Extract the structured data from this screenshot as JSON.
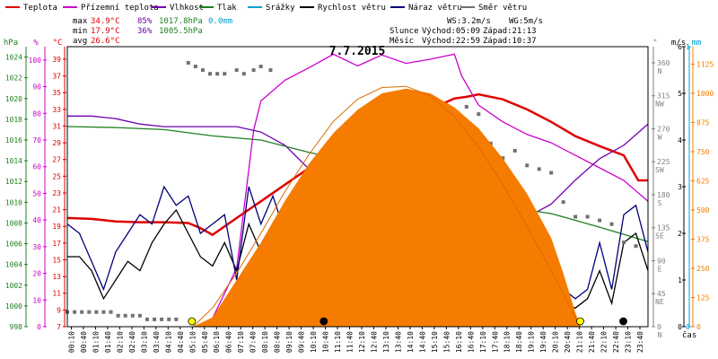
{
  "chart_data": {
    "type": "line",
    "title": "7.7.2015",
    "xlabel": "čas",
    "legend": [
      {
        "label": "Teplota",
        "color": "#e00000"
      },
      {
        "label": "Přízemní teplota",
        "color": "#cc00cc"
      },
      {
        "label": "Vlhkost",
        "color": "#7000b0"
      },
      {
        "label": "Tlak",
        "color": "#208020"
      },
      {
        "label": "Srážky",
        "color": "#00a0d0"
      },
      {
        "label": "Rychlost větru",
        "color": "#000000"
      },
      {
        "label": "Náraz větru",
        "color": "#00007a"
      },
      {
        "label": "Směr větru",
        "color": "#707070"
      }
    ],
    "stats": {
      "max": {
        "label": "max",
        "temp": "34.9°C",
        "hum": "85%",
        "press": "1017.8hPa",
        "rain": "0.0mm"
      },
      "min": {
        "label": "min",
        "temp": "17.9°C",
        "hum": "36%",
        "press": "1005.5hPa"
      },
      "avg": {
        "label": "avg",
        "temp": "26.6°C"
      }
    },
    "wind_info": {
      "ws": "WS:3.2m/s",
      "wg": "WG:5m/s"
    },
    "sun": {
      "label": "Slunce",
      "rise": "Východ:05:09",
      "set": "Západ:21:13"
    },
    "moon": {
      "label": "Měsíc",
      "rise": "Východ:22:59",
      "set": "Západ:10:37"
    },
    "axes": {
      "hpa": {
        "unit": "hPa",
        "range": [
          998,
          1025
        ],
        "ticks": [
          "998",
          "1000",
          "1002",
          "1004",
          "1006",
          "1008",
          "1010",
          "1012",
          "1014",
          "1016",
          "1018",
          "1020",
          "1022",
          "1024"
        ]
      },
      "humidity": {
        "unit": "%",
        "range": [
          0,
          105
        ],
        "ticks": [
          "0",
          "10",
          "20",
          "30",
          "40",
          "50",
          "60",
          "70",
          "80",
          "90",
          "100"
        ]
      },
      "temp": {
        "unit": "°C",
        "range": [
          7,
          40.5
        ],
        "ticks": [
          "7",
          "9",
          "11",
          "13",
          "15",
          "17",
          "19",
          "21",
          "23",
          "25",
          "27",
          "29",
          "31",
          "33",
          "35",
          "37",
          "39"
        ]
      },
      "direction": {
        "unit": "°",
        "range": [
          0,
          382
        ],
        "ticks": [
          "0",
          "45",
          "90",
          "135",
          "180",
          "225",
          "270",
          "315",
          "360"
        ],
        "labels": [
          "N",
          "NE",
          "E",
          "SE",
          "S",
          "SW",
          "W",
          "NW",
          "N"
        ]
      },
      "wind": {
        "unit": "m/s",
        "range": [
          0,
          6
        ],
        "ticks": [
          "0",
          "1",
          "2",
          "3",
          "4",
          "5",
          "6"
        ]
      },
      "rain": {
        "unit": "mm",
        "range": [
          0,
          1
        ],
        "ticks": [
          "0",
          "1"
        ]
      },
      "solar": {
        "range": [
          0,
          1200
        ],
        "ticks": [
          "0",
          "125",
          "250",
          "375",
          "500",
          "625",
          "750",
          "875",
          "1000",
          "1125"
        ]
      }
    },
    "x_ticks": [
      "00:10",
      "00:40",
      "01:10",
      "01:40",
      "02:10",
      "02:40",
      "03:10",
      "03:40",
      "04:10",
      "04:40",
      "05:10",
      "05:40",
      "06:10",
      "06:40",
      "07:10",
      "07:40",
      "08:10",
      "08:40",
      "09:10",
      "09:40",
      "10:10",
      "10:40",
      "11:10",
      "11:40",
      "12:10",
      "12:40",
      "13:10",
      "13:40",
      "14:10",
      "14:40",
      "15:10",
      "15:40",
      "16:10",
      "16:40",
      "17:10",
      "17:40",
      "18:10",
      "18:40",
      "19:10",
      "19:40",
      "20:10",
      "20:40",
      "21:10",
      "21:40",
      "22:10",
      "22:40",
      "23:10",
      "23:40"
    ],
    "series": [
      {
        "name": "Teplota",
        "color": "#e00000",
        "axis": "temp",
        "x": [
          0,
          1,
          2,
          3,
          4,
          5,
          5.5,
          6,
          7,
          8,
          9,
          10,
          11,
          12,
          13,
          14,
          15,
          16,
          16.5,
          17,
          18,
          19,
          20,
          21,
          22,
          23,
          23.6,
          24
        ],
        "values": [
          20.0,
          19.9,
          19.6,
          19.5,
          19.5,
          19.4,
          18.8,
          18.0,
          20.0,
          22.0,
          24.0,
          26.0,
          27.8,
          29.8,
          31.0,
          32.0,
          33.0,
          34.3,
          34.5,
          34.8,
          34.2,
          33.0,
          31.5,
          29.8,
          28.6,
          27.5,
          24.5,
          24.5
        ]
      },
      {
        "name": "Přízemní teplota",
        "color": "#cc00cc",
        "axis": "temp",
        "x": [
          5.5,
          6,
          7,
          7.7,
          8,
          9,
          10,
          11,
          12,
          13,
          14,
          15,
          16,
          16.3,
          17,
          18,
          19,
          20,
          21,
          22,
          23,
          24
        ],
        "values": [
          7.2,
          8.0,
          14.0,
          30.5,
          34.0,
          36.5,
          38.0,
          39.6,
          38.2,
          39.5,
          38.5,
          39.0,
          39.6,
          37.0,
          33.5,
          31.5,
          30.0,
          29.0,
          27.5,
          26.0,
          24.5,
          22.0
        ]
      },
      {
        "name": "Vlhkost",
        "color": "#7000b0",
        "axis": "humidity",
        "x": [
          0,
          1,
          2,
          3,
          4,
          5,
          6,
          7,
          8,
          9,
          10,
          11,
          12,
          13,
          14,
          15,
          16,
          17,
          18,
          19,
          20,
          21,
          22,
          23,
          24
        ],
        "values": [
          79,
          79,
          78,
          76,
          75,
          75,
          75,
          75,
          73,
          68,
          59,
          53,
          50,
          47,
          45,
          44,
          43,
          37,
          36,
          41,
          46,
          55,
          63,
          68,
          76
        ]
      },
      {
        "name": "Tlak",
        "color": "#208020",
        "axis": "hpa",
        "x": [
          0,
          2,
          4,
          6,
          8,
          10,
          12,
          14,
          16,
          18,
          20,
          22,
          24
        ],
        "values": [
          1017.3,
          1017.2,
          1017.0,
          1016.4,
          1016.0,
          1014.8,
          1013.8,
          1012.2,
          1010.4,
          1009.6,
          1008.9,
          1007.6,
          1006.2
        ]
      },
      {
        "name": "Rychlost větru",
        "color": "#000000",
        "axis": "wind",
        "x": [
          0,
          0.5,
          1,
          1.5,
          2,
          2.5,
          3,
          3.5,
          4,
          4.5,
          5,
          5.5,
          6,
          6.5,
          7,
          7.5,
          8,
          8.5,
          9,
          9.5,
          10,
          10.5,
          11,
          11.5,
          12,
          12.5,
          13,
          13.5,
          14,
          14.5,
          15,
          15.5,
          16,
          16.5,
          17,
          17.5,
          18,
          18.5,
          19,
          19.5,
          20,
          20.5,
          21,
          21.5,
          22,
          22.5,
          23,
          23.5,
          24
        ],
        "values": [
          1.5,
          1.5,
          1.2,
          0.6,
          1.0,
          1.4,
          1.2,
          1.8,
          2.2,
          2.5,
          2.0,
          1.5,
          1.3,
          1.8,
          1.2,
          2.2,
          1.6,
          2.0,
          1.5,
          1.4,
          1.8,
          1.4,
          1.2,
          2.0,
          2.2,
          1.8,
          1.5,
          2.5,
          2.2,
          1.8,
          2.0,
          2.4,
          2.0,
          1.8,
          1.7,
          1.5,
          1.4,
          1.2,
          1.6,
          1.2,
          1.0,
          0.5,
          0.4,
          0.6,
          1.2,
          0.5,
          1.8,
          2.0,
          1.2
        ]
      },
      {
        "name": "Náraz větru",
        "color": "#00007a",
        "axis": "wind",
        "x": [
          0,
          0.5,
          1,
          1.5,
          2,
          2.5,
          3,
          3.5,
          4,
          4.5,
          5,
          5.5,
          6,
          6.5,
          7,
          7.5,
          8,
          8.5,
          9,
          9.5,
          10,
          10.5,
          11,
          11.5,
          12,
          12.5,
          13,
          13.5,
          14,
          14.5,
          15,
          15.5,
          16,
          16.5,
          17,
          17.5,
          18,
          18.5,
          19,
          19.5,
          20,
          20.5,
          21,
          21.5,
          22,
          22.5,
          23,
          23.5,
          24
        ],
        "values": [
          2.2,
          2.0,
          1.4,
          0.8,
          1.6,
          2.0,
          2.4,
          2.2,
          3.0,
          2.6,
          2.8,
          2.0,
          2.2,
          2.4,
          1.0,
          3.0,
          2.2,
          2.8,
          2.0,
          1.6,
          2.4,
          1.8,
          1.5,
          2.8,
          3.2,
          2.4,
          2.0,
          3.6,
          3.0,
          2.4,
          2.6,
          3.2,
          2.4,
          2.6,
          2.2,
          2.0,
          1.8,
          1.6,
          2.2,
          1.6,
          1.4,
          0.8,
          0.6,
          0.8,
          1.8,
          0.8,
          2.4,
          2.6,
          1.6
        ]
      },
      {
        "name": "Směr větru",
        "color": "#707070",
        "axis": "direction",
        "marker": "square",
        "x": [
          0,
          0.3,
          0.6,
          0.9,
          1.2,
          1.5,
          1.8,
          2.1,
          2.4,
          2.7,
          3.0,
          3.3,
          3.6,
          3.9,
          4.2,
          4.5,
          5.0,
          5.3,
          5.6,
          5.9,
          6.2,
          6.5,
          7.0,
          7.3,
          7.7,
          8.0,
          8.4,
          9.0,
          9.5,
          10.0,
          10.5,
          11.0,
          11.5,
          12.0,
          12.5,
          13.0,
          13.5,
          14.0,
          14.5,
          15.0,
          15.5,
          16.0,
          16.5,
          17.0,
          17.5,
          18.0,
          18.5,
          19.0,
          19.5,
          20.0,
          20.5,
          21.0,
          21.5,
          22.0,
          22.5,
          23.0,
          23.5
        ],
        "values": [
          20,
          20,
          20,
          20,
          20,
          20,
          20,
          15,
          15,
          15,
          15,
          10,
          10,
          10,
          10,
          10,
          360,
          355,
          350,
          345,
          345,
          345,
          350,
          345,
          350,
          355,
          350,
          150,
          60,
          180,
          200,
          80,
          170,
          210,
          240,
          220,
          250,
          300,
          260,
          230,
          270,
          220,
          300,
          290,
          250,
          230,
          240,
          220,
          215,
          210,
          170,
          150,
          150,
          145,
          140,
          115,
          110
        ]
      },
      {
        "name": "Sluneční záření",
        "color": "#f57c00",
        "axis": "solar",
        "fill": true,
        "x": [
          5.2,
          6,
          7,
          8,
          9,
          10,
          11,
          12,
          13,
          14,
          15,
          16,
          17,
          18,
          19,
          20,
          20.5,
          21,
          21.2
        ],
        "values": [
          0,
          40,
          200,
          360,
          540,
          700,
          830,
          930,
          1000,
          1020,
          1000,
          940,
          850,
          720,
          570,
          380,
          230,
          60,
          0
        ]
      },
      {
        "name": "Teoretické záření",
        "color": "#d86c00",
        "axis": "solar",
        "x": [
          5.2,
          6,
          7,
          8,
          9,
          10,
          11,
          12,
          13,
          14,
          15,
          16,
          17,
          18,
          19,
          20,
          21,
          21.2
        ],
        "values": [
          0,
          80,
          230,
          400,
          580,
          740,
          880,
          975,
          1025,
          1030,
          990,
          900,
          770,
          610,
          430,
          240,
          40,
          0
        ]
      }
    ],
    "markers": [
      {
        "name": "sunrise",
        "x": 5.15,
        "color": "#ffff00"
      },
      {
        "name": "moonset",
        "x": 10.6,
        "color": "#000000"
      },
      {
        "name": "sunset",
        "x": 21.2,
        "color": "#ffff00"
      },
      {
        "name": "moonrise",
        "x": 22.98,
        "color": "#000000"
      }
    ]
  }
}
